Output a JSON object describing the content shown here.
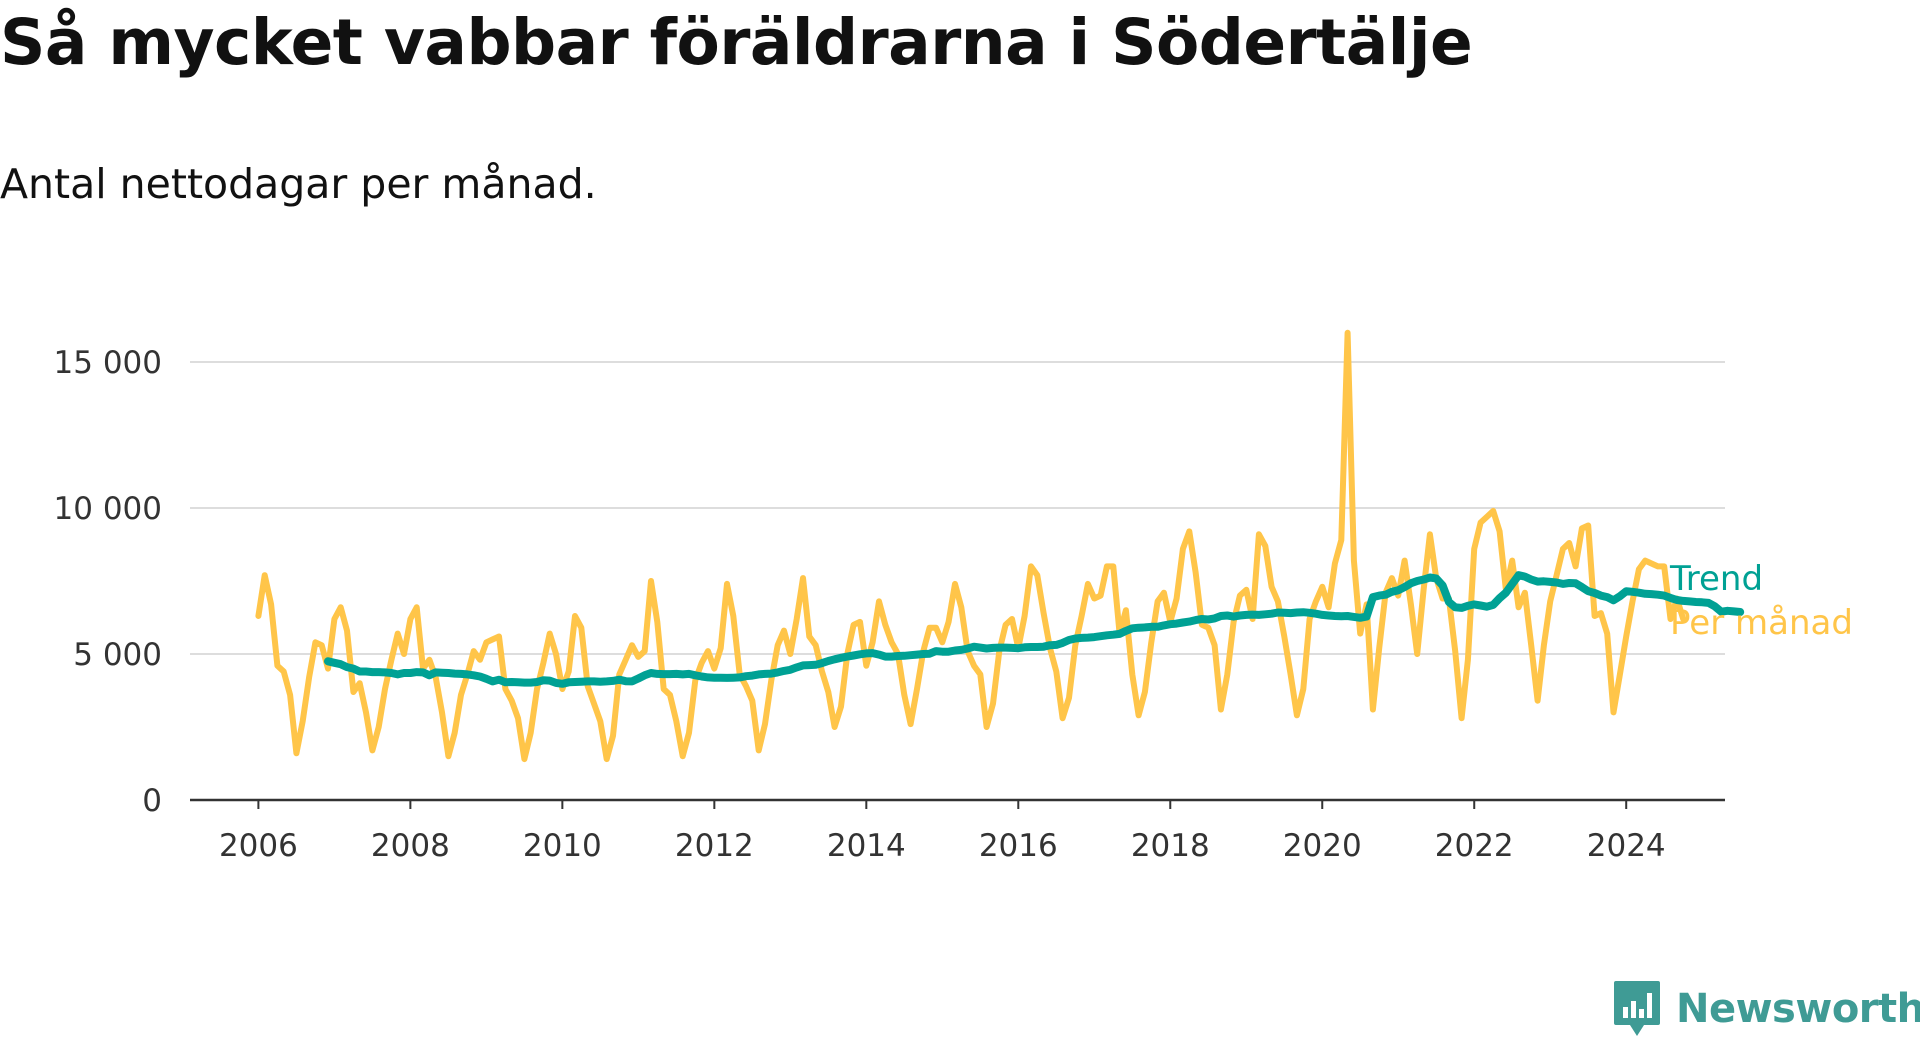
{
  "title": "Så mycket vabbar föräldrarna i Södertälje",
  "subtitle": "Antal nettodagar per månad.",
  "brand": {
    "name": "Newsworthy",
    "icon": "newsworthy-logo-icon",
    "color": "#3f9b95"
  },
  "colors": {
    "monthly": "#ffc549",
    "trend": "#00a194",
    "grid": "#dddddd",
    "axis": "#333333"
  },
  "chart_data": {
    "type": "line",
    "title": "Så mycket vabbar föräldrarna i Södertälje",
    "subtitle": "Antal nettodagar per månad.",
    "xlabel": "",
    "ylabel": "",
    "xlim": [
      2005.1,
      2025.3
    ],
    "ylim": [
      0,
      16500
    ],
    "x_ticks": [
      2006,
      2008,
      2010,
      2012,
      2014,
      2016,
      2018,
      2020,
      2022,
      2024
    ],
    "x_tick_labels": [
      "2006",
      "2008",
      "2010",
      "2012",
      "2014",
      "2016",
      "2018",
      "2020",
      "2022",
      "2024"
    ],
    "y_ticks": [
      0,
      5000,
      10000,
      15000
    ],
    "y_tick_labels": [
      "0",
      "5 000",
      "10 000",
      "15 000"
    ],
    "grid": "horizontal",
    "legend": "end-of-line labels",
    "start": "2006-01",
    "step": "month",
    "series": [
      {
        "name": "Per månad",
        "values": [
          6300,
          7700,
          6700,
          4600,
          4400,
          3600,
          1600,
          2700,
          4200,
          5400,
          5300,
          4500,
          6200,
          6600,
          5800,
          3700,
          4000,
          3000,
          1700,
          2500,
          3800,
          4800,
          5700,
          5000,
          6200,
          6600,
          4500,
          4800,
          4200,
          3000,
          1500,
          2300,
          3600,
          4300,
          5100,
          4800,
          5400,
          5500,
          5600,
          3800,
          3400,
          2800,
          1400,
          2300,
          3800,
          4700,
          5700,
          5000,
          3800,
          4400,
          6300,
          5900,
          3900,
          3300,
          2700,
          1400,
          2200,
          4300,
          4800,
          5300,
          4900,
          5100,
          7500,
          6100,
          3800,
          3600,
          2700,
          1500,
          2300,
          4100,
          4700,
          5100,
          4500,
          5200,
          7400,
          6300,
          4300,
          3900,
          3400,
          1700,
          2600,
          4100,
          5300,
          5800,
          5000,
          6200,
          7600,
          5600,
          5300,
          4400,
          3700,
          2500,
          3200,
          5000,
          6000,
          6100,
          4600,
          5400,
          6800,
          6000,
          5400,
          5000,
          3600,
          2600,
          3800,
          5100,
          5900,
          5900,
          5400,
          6100,
          7400,
          6600,
          5100,
          4600,
          4300,
          2500,
          3300,
          5100,
          6000,
          6200,
          5200,
          6300,
          8000,
          7700,
          6400,
          5200,
          4400,
          2800,
          3500,
          5300,
          6300,
          7400,
          6900,
          7000,
          8000,
          8000,
          5700,
          6500,
          4300,
          2900,
          3700,
          5400,
          6800,
          7100,
          6100,
          6900,
          8600,
          9200,
          7800,
          6000,
          5900,
          5300,
          3100,
          4300,
          6100,
          7000,
          7200,
          6200,
          9100,
          8700,
          7300,
          6800,
          5600,
          4300,
          2900,
          3800,
          6200,
          6800,
          7300,
          6600,
          8100,
          8900,
          16000,
          8200,
          5700,
          6700,
          3100,
          5200,
          7100,
          7600,
          7000,
          8200,
          6700,
          5000,
          7200,
          9100,
          7600,
          6900,
          6900,
          5100,
          2800,
          4800,
          8600,
          9500,
          9700,
          9900,
          9200,
          7200,
          8200,
          6600,
          7100,
          5300,
          3400,
          5300,
          6800,
          7700,
          8600,
          8800,
          8000,
          9300,
          9400,
          6300,
          6400,
          5700,
          3000,
          4300,
          5600,
          6800,
          7900,
          8200,
          8100,
          8000,
          8000,
          6200,
          6900,
          6200
        ],
        "color": "#ffc549"
      },
      {
        "name": "Trend",
        "values": [
          4750,
          4700,
          4650,
          4550,
          4500,
          4400,
          4400,
          4380,
          4380,
          4370,
          4350,
          4300,
          4350,
          4350,
          4380,
          4370,
          4270,
          4370,
          4360,
          4350,
          4330,
          4320,
          4300,
          4270,
          4230,
          4150,
          4060,
          4120,
          4030,
          4040,
          4030,
          4020,
          4020,
          4040,
          4100,
          4090,
          4010,
          3980,
          4030,
          4040,
          4050,
          4060,
          4060,
          4050,
          4060,
          4080,
          4120,
          4070,
          4060,
          4160,
          4270,
          4350,
          4320,
          4310,
          4310,
          4320,
          4300,
          4320,
          4270,
          4230,
          4200,
          4190,
          4190,
          4180,
          4190,
          4200,
          4240,
          4260,
          4300,
          4320,
          4330,
          4370,
          4420,
          4460,
          4540,
          4610,
          4620,
          4630,
          4690,
          4760,
          4820,
          4870,
          4910,
          4950,
          4990,
          5020,
          5030,
          4980,
          4910,
          4910,
          4930,
          4940,
          4960,
          4980,
          5000,
          5010,
          5100,
          5080,
          5080,
          5120,
          5140,
          5190,
          5250,
          5220,
          5190,
          5210,
          5220,
          5220,
          5210,
          5200,
          5230,
          5240,
          5240,
          5250,
          5300,
          5310,
          5380,
          5480,
          5530,
          5550,
          5560,
          5580,
          5610,
          5640,
          5660,
          5690,
          5790,
          5880,
          5900,
          5910,
          5930,
          5930,
          5980,
          6020,
          6040,
          6080,
          6110,
          6160,
          6200,
          6180,
          6220,
          6300,
          6320,
          6280,
          6320,
          6340,
          6350,
          6340,
          6360,
          6380,
          6420,
          6410,
          6400,
          6420,
          6430,
          6410,
          6380,
          6340,
          6320,
          6300,
          6290,
          6300,
          6270,
          6240,
          6280,
          6950,
          7000,
          7030,
          7130,
          7180,
          7290,
          7420,
          7500,
          7550,
          7620,
          7590,
          7350,
          6780,
          6600,
          6580,
          6650,
          6700,
          6660,
          6620,
          6680,
          6910,
          7100,
          7400,
          7700,
          7650,
          7550,
          7480,
          7490,
          7470,
          7450,
          7400,
          7430,
          7420,
          7290,
          7150,
          7090,
          7000,
          6950,
          6840,
          6980,
          7150,
          7130,
          7100,
          7060,
          7050,
          7030,
          7000,
          6920,
          6850,
          6820,
          6800,
          6780,
          6770,
          6750,
          6630,
          6450,
          6480,
          6460,
          6440
        ],
        "color": "#00a194"
      }
    ],
    "series_labels": [
      {
        "name": "Trend",
        "color": "#00a194"
      },
      {
        "name": "Per månad",
        "color": "#ffc549"
      }
    ]
  }
}
